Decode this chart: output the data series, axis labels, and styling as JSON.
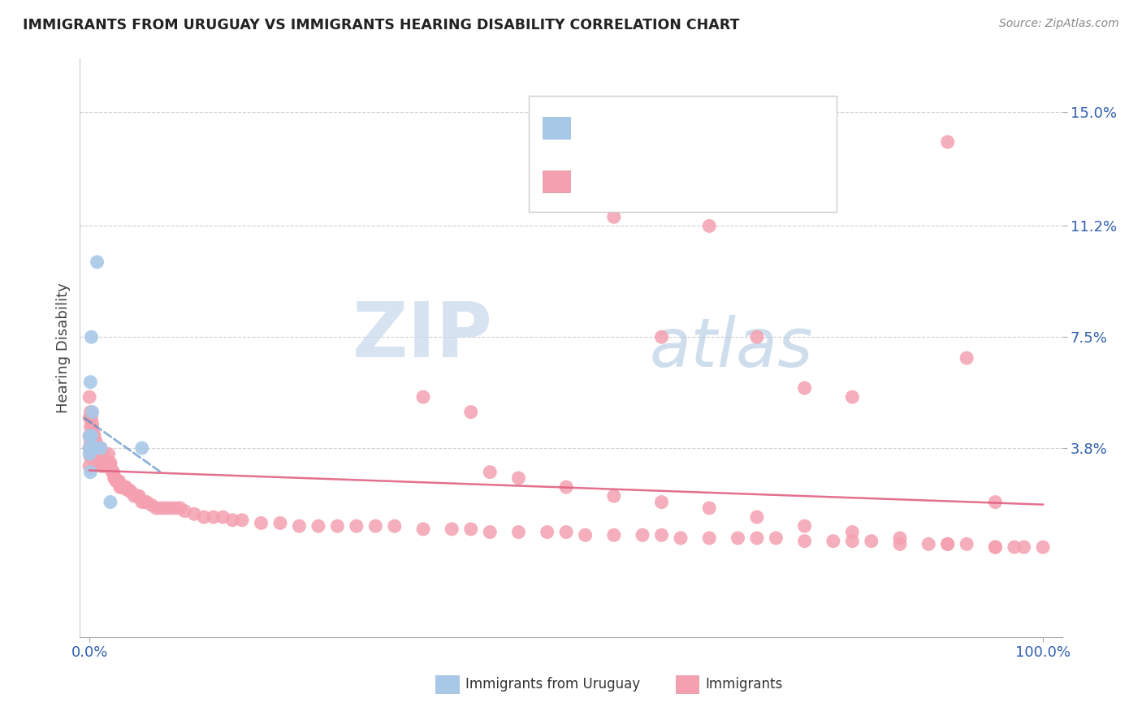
{
  "title": "IMMIGRANTS FROM URUGUAY VS IMMIGRANTS HEARING DISABILITY CORRELATION CHART",
  "source": "Source: ZipAtlas.com",
  "ylabel": "Hearing Disability",
  "ytick_vals": [
    0.038,
    0.075,
    0.112,
    0.15
  ],
  "ytick_labels": [
    "3.8%",
    "7.5%",
    "11.2%",
    "15.0%"
  ],
  "xlim": [
    -0.01,
    1.02
  ],
  "ylim": [
    -0.025,
    0.168
  ],
  "blue_color": "#a8c8e8",
  "pink_color": "#f4a0b0",
  "blue_line_color": "#4080c0",
  "pink_line_color": "#e06080",
  "watermark_zip": "ZIP",
  "watermark_atlas": "atlas",
  "blue_scatter_x": [
    0.0,
    0.0,
    0.0,
    0.001,
    0.001,
    0.002,
    0.002,
    0.003,
    0.003,
    0.004,
    0.005,
    0.006,
    0.008,
    0.012,
    0.022,
    0.055
  ],
  "blue_scatter_y": [
    0.038,
    0.042,
    0.036,
    0.03,
    0.06,
    0.075,
    0.042,
    0.038,
    0.05,
    0.038,
    0.038,
    0.038,
    0.1,
    0.038,
    0.02,
    0.038
  ],
  "pink_scatter_x": [
    0.0,
    0.0,
    0.0,
    0.0,
    0.0,
    0.001,
    0.001,
    0.001,
    0.001,
    0.002,
    0.002,
    0.002,
    0.003,
    0.003,
    0.003,
    0.004,
    0.004,
    0.004,
    0.005,
    0.005,
    0.005,
    0.006,
    0.006,
    0.006,
    0.007,
    0.007,
    0.008,
    0.008,
    0.009,
    0.009,
    0.01,
    0.01,
    0.011,
    0.011,
    0.012,
    0.012,
    0.013,
    0.014,
    0.015,
    0.015,
    0.016,
    0.017,
    0.018,
    0.019,
    0.02,
    0.021,
    0.022,
    0.023,
    0.024,
    0.025,
    0.026,
    0.027,
    0.028,
    0.029,
    0.03,
    0.031,
    0.032,
    0.033,
    0.034,
    0.035,
    0.036,
    0.037,
    0.038,
    0.04,
    0.042,
    0.045,
    0.047,
    0.05,
    0.052,
    0.055,
    0.058,
    0.06,
    0.065,
    0.07,
    0.075,
    0.08,
    0.085,
    0.09,
    0.095,
    0.1,
    0.11,
    0.12,
    0.13,
    0.14,
    0.15,
    0.16,
    0.18,
    0.2,
    0.22,
    0.24,
    0.26,
    0.28,
    0.3,
    0.32,
    0.35,
    0.38,
    0.4,
    0.42,
    0.45,
    0.48,
    0.5,
    0.52,
    0.55,
    0.58,
    0.6,
    0.62,
    0.65,
    0.68,
    0.7,
    0.72,
    0.75,
    0.78,
    0.8,
    0.82,
    0.85,
    0.88,
    0.9,
    0.92,
    0.95,
    0.97,
    0.98,
    1.0,
    0.42,
    0.45,
    0.5,
    0.55,
    0.6,
    0.65,
    0.7,
    0.75,
    0.8,
    0.85,
    0.9,
    0.95,
    0.35,
    0.4,
    0.55,
    0.6,
    0.65,
    0.7,
    0.75,
    0.8,
    0.9,
    0.92,
    0.95
  ],
  "pink_scatter_y": [
    0.055,
    0.048,
    0.042,
    0.038,
    0.032,
    0.05,
    0.045,
    0.04,
    0.035,
    0.048,
    0.042,
    0.038,
    0.046,
    0.04,
    0.036,
    0.043,
    0.039,
    0.035,
    0.042,
    0.038,
    0.034,
    0.04,
    0.036,
    0.033,
    0.04,
    0.036,
    0.038,
    0.034,
    0.038,
    0.034,
    0.038,
    0.034,
    0.038,
    0.034,
    0.036,
    0.032,
    0.034,
    0.034,
    0.036,
    0.032,
    0.034,
    0.033,
    0.033,
    0.033,
    0.036,
    0.033,
    0.033,
    0.031,
    0.03,
    0.03,
    0.028,
    0.028,
    0.027,
    0.027,
    0.027,
    0.027,
    0.025,
    0.025,
    0.025,
    0.025,
    0.025,
    0.025,
    0.025,
    0.024,
    0.024,
    0.023,
    0.022,
    0.022,
    0.022,
    0.02,
    0.02,
    0.02,
    0.019,
    0.018,
    0.018,
    0.018,
    0.018,
    0.018,
    0.018,
    0.017,
    0.016,
    0.015,
    0.015,
    0.015,
    0.014,
    0.014,
    0.013,
    0.013,
    0.012,
    0.012,
    0.012,
    0.012,
    0.012,
    0.012,
    0.011,
    0.011,
    0.011,
    0.01,
    0.01,
    0.01,
    0.01,
    0.009,
    0.009,
    0.009,
    0.009,
    0.008,
    0.008,
    0.008,
    0.008,
    0.008,
    0.007,
    0.007,
    0.007,
    0.007,
    0.006,
    0.006,
    0.006,
    0.006,
    0.005,
    0.005,
    0.005,
    0.005,
    0.03,
    0.028,
    0.025,
    0.022,
    0.02,
    0.018,
    0.015,
    0.012,
    0.01,
    0.008,
    0.006,
    0.005,
    0.055,
    0.05,
    0.115,
    0.075,
    0.112,
    0.075,
    0.058,
    0.055,
    0.14,
    0.068,
    0.02
  ]
}
